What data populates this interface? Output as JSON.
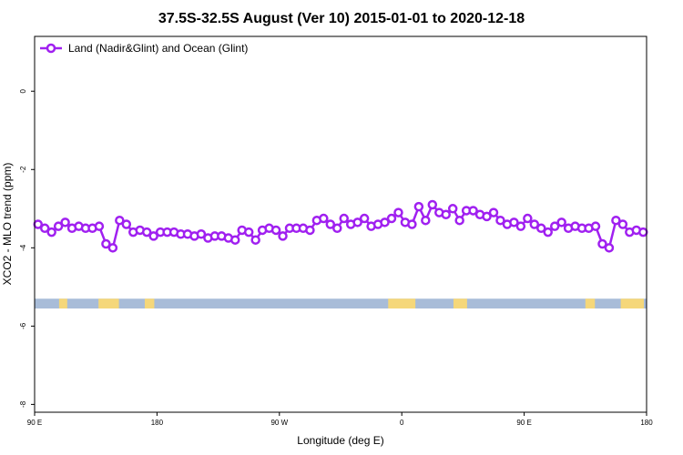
{
  "chart_data": {
    "type": "line",
    "title": "37.5S-32.5S August (Ver 10)   2015-01-01 to 2020-12-18",
    "xlabel": "Longitude (deg E)",
    "ylabel": "XCO2 - MLO trend (ppm)",
    "xlim": [
      90,
      540
    ],
    "ylim": [
      -8.2,
      1.4
    ],
    "x_ticks": [
      {
        "value": 90,
        "label": "90 E"
      },
      {
        "value": 180,
        "label": "180"
      },
      {
        "value": 270,
        "label": "90 W"
      },
      {
        "value": 360,
        "label": "0"
      },
      {
        "value": 450,
        "label": "90 E"
      },
      {
        "value": 540,
        "label": "180"
      }
    ],
    "y_ticks": [
      {
        "value": 0,
        "label": "0"
      },
      {
        "value": -2,
        "label": "-2"
      },
      {
        "value": -4,
        "label": "-4"
      },
      {
        "value": -6,
        "label": "-6"
      },
      {
        "value": -8,
        "label": "-8"
      }
    ],
    "grid": false,
    "legend_position": "top-left",
    "series": [
      {
        "name": "Land (Nadir&Glint) and Ocean (Glint)",
        "color": "#a020f0",
        "x": [
          92.5,
          97.5,
          102.5,
          107.5,
          112.5,
          117.5,
          122.5,
          127.5,
          132.5,
          137.5,
          142.5,
          147.5,
          152.5,
          157.5,
          162.5,
          167.5,
          172.5,
          177.5,
          182.5,
          187.5,
          192.5,
          197.5,
          202.5,
          207.5,
          212.5,
          217.5,
          222.5,
          227.5,
          232.5,
          237.5,
          242.5,
          247.5,
          252.5,
          257.5,
          262.5,
          267.5,
          272.5,
          277.5,
          282.5,
          287.5,
          292.5,
          297.5,
          302.5,
          307.5,
          312.5,
          317.5,
          322.5,
          327.5,
          332.5,
          337.5,
          342.5,
          347.5,
          352.5,
          357.5,
          362.5,
          367.5,
          372.5,
          377.5,
          382.5,
          387.5,
          392.5,
          397.5,
          402.5,
          407.5,
          412.5,
          417.5,
          422.5,
          427.5,
          432.5,
          437.5,
          442.5,
          447.5,
          452.5,
          457.5,
          462.5,
          467.5,
          472.5,
          477.5,
          482.5,
          487.5,
          492.5,
          497.5,
          502.5,
          507.5,
          512.5,
          517.5,
          522.5,
          527.5,
          532.5,
          537.5
        ],
        "y": [
          -3.4,
          -3.5,
          -3.6,
          -3.45,
          -3.35,
          -3.5,
          -3.45,
          -3.5,
          -3.5,
          -3.45,
          -3.9,
          -4.0,
          -3.3,
          -3.4,
          -3.6,
          -3.55,
          -3.6,
          -3.7,
          -3.6,
          -3.6,
          -3.6,
          -3.65,
          -3.65,
          -3.7,
          -3.65,
          -3.75,
          -3.7,
          -3.7,
          -3.75,
          -3.8,
          -3.55,
          -3.6,
          -3.8,
          -3.55,
          -3.5,
          -3.55,
          -3.7,
          -3.5,
          -3.5,
          -3.5,
          -3.55,
          -3.3,
          -3.25,
          -3.4,
          -3.5,
          -3.25,
          -3.4,
          -3.35,
          -3.25,
          -3.45,
          -3.4,
          -3.35,
          -3.25,
          -3.1,
          -3.35,
          -3.4,
          -2.95,
          -3.3,
          -2.9,
          -3.1,
          -3.15,
          -3.0,
          -3.3,
          -3.05,
          -3.05,
          -3.15,
          -3.2,
          -3.1,
          -3.3,
          -3.4,
          -3.35,
          -3.45,
          -3.25,
          -3.4,
          -3.5,
          -3.6,
          -3.45,
          -3.35,
          -3.5,
          -3.45,
          -3.5,
          -3.5,
          -3.45,
          -3.9,
          -4.0,
          -3.3,
          -3.4,
          -3.6,
          -3.55,
          -3.6
        ]
      }
    ],
    "map_strip": {
      "y_range": [
        -5.3,
        -5.55
      ],
      "ocean_color": "#a8bcd8",
      "land_color": "#f5d77a",
      "land_segments": [
        [
          108,
          114
        ],
        [
          137,
          152
        ],
        [
          171,
          178
        ],
        [
          350,
          370
        ],
        [
          398,
          408
        ],
        [
          495,
          502
        ],
        [
          521,
          538
        ]
      ]
    }
  }
}
